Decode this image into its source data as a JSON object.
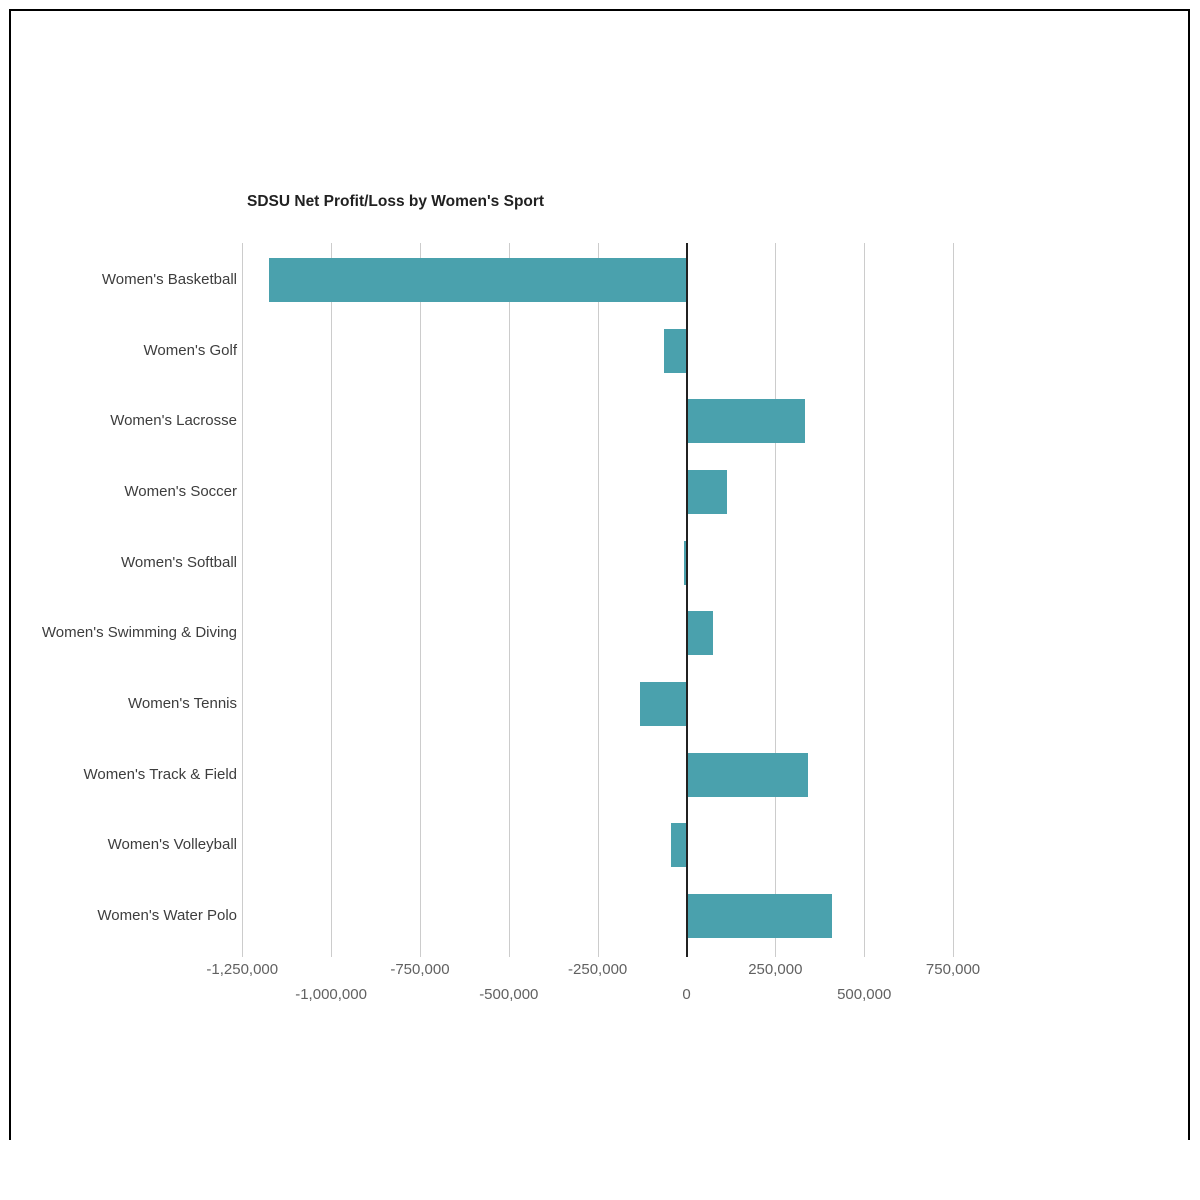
{
  "chart_data": {
    "type": "bar",
    "orientation": "horizontal",
    "title": "SDSU Net Profit/Loss by Women's Sport",
    "categories": [
      "Women's Basketball",
      "Women's Golf",
      "Women's Lacrosse",
      "Women's Soccer",
      "Women's Softball",
      "Women's Swimming & Diving",
      "Women's Tennis",
      "Women's Track & Field",
      "Women's Volleyball",
      "Women's Water Polo"
    ],
    "values": [
      -1175000,
      -62000,
      330000,
      112000,
      -8000,
      73000,
      -132000,
      340000,
      -45000,
      407000
    ],
    "xlabel": "",
    "ylabel": "",
    "xlim": [
      -1250000,
      750000
    ],
    "x_ticks": [
      -1250000,
      -1000000,
      -750000,
      -500000,
      -250000,
      0,
      250000,
      500000,
      750000
    ],
    "x_tick_labels": [
      "-1,250,000",
      "-1,000,000",
      "-750,000",
      "-500,000",
      "-250,000",
      "0",
      "250,000",
      "500,000",
      "750,000"
    ],
    "bar_color": "#4AA1AD",
    "grid": true,
    "legend": false,
    "zero_line_color": "#212121"
  }
}
